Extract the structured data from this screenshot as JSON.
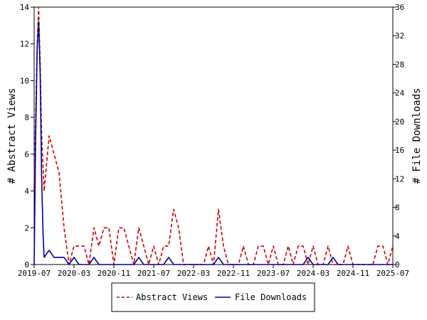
{
  "chart_data": {
    "type": "line",
    "title": "",
    "xlabel": "",
    "ylabel_left": "# Abstract Views",
    "ylabel_right": "# File Downloads",
    "ylim_left": [
      0,
      14
    ],
    "ylim_right": [
      0,
      36
    ],
    "yticks_left": [
      "0",
      "2",
      "4",
      "6",
      "8",
      "10",
      "12",
      "14"
    ],
    "yticks_right": [
      "0",
      "4",
      "8",
      "12",
      "16",
      "20",
      "24",
      "28",
      "32",
      "36"
    ],
    "x_labels": [
      "2019-07",
      "2020-03",
      "2020-11",
      "2021-07",
      "2022-03",
      "2022-11",
      "2023-07",
      "2024-03",
      "2024-11",
      "2025-07"
    ],
    "x_range": [
      0,
      72
    ],
    "legend_position": "bottom",
    "colors": {
      "abstract": "#cc0000",
      "downloads": "#000099"
    },
    "series": [
      {
        "name": "Abstract Views",
        "axis": "left",
        "style": "dashed",
        "points": [
          [
            0,
            4
          ],
          [
            0.3,
            8
          ],
          [
            0.6,
            12
          ],
          [
            0.9,
            14
          ],
          [
            1.2,
            11
          ],
          [
            1.5,
            7
          ],
          [
            2,
            4
          ],
          [
            3,
            7
          ],
          [
            4,
            6
          ],
          [
            5,
            5
          ],
          [
            6,
            2
          ],
          [
            7,
            0
          ],
          [
            8,
            1
          ],
          [
            9,
            1
          ],
          [
            10,
            1
          ],
          [
            11,
            0
          ],
          [
            12,
            2
          ],
          [
            13,
            1
          ],
          [
            14,
            2
          ],
          [
            15,
            2
          ],
          [
            16,
            0
          ],
          [
            17,
            2
          ],
          [
            18,
            2
          ],
          [
            19,
            1
          ],
          [
            20,
            0
          ],
          [
            21,
            2
          ],
          [
            22,
            1
          ],
          [
            23,
            0
          ],
          [
            24,
            1
          ],
          [
            25,
            0
          ],
          [
            26,
            1
          ],
          [
            27,
            1
          ],
          [
            28,
            3
          ],
          [
            29,
            2
          ],
          [
            30,
            0
          ],
          [
            31,
            0
          ],
          [
            32,
            0
          ],
          [
            33,
            0
          ],
          [
            34,
            0
          ],
          [
            35,
            1
          ],
          [
            36,
            0
          ],
          [
            37,
            3
          ],
          [
            38,
            1
          ],
          [
            39,
            0
          ],
          [
            40,
            0
          ],
          [
            41,
            0
          ],
          [
            42,
            1
          ],
          [
            43,
            0
          ],
          [
            44,
            0
          ],
          [
            45,
            1
          ],
          [
            46,
            1
          ],
          [
            47,
            0
          ],
          [
            48,
            1
          ],
          [
            49,
            0
          ],
          [
            50,
            0
          ],
          [
            51,
            1
          ],
          [
            52,
            0
          ],
          [
            53,
            1
          ],
          [
            54,
            1
          ],
          [
            55,
            0
          ],
          [
            56,
            1
          ],
          [
            57,
            0
          ],
          [
            58,
            0
          ],
          [
            59,
            1
          ],
          [
            60,
            0
          ],
          [
            61,
            0
          ],
          [
            62,
            0
          ],
          [
            63,
            1
          ],
          [
            64,
            0
          ],
          [
            65,
            0
          ],
          [
            66,
            0
          ],
          [
            67,
            0
          ],
          [
            68,
            0
          ],
          [
            69,
            1
          ],
          [
            70,
            1
          ],
          [
            71,
            0
          ],
          [
            72,
            1
          ]
        ]
      },
      {
        "name": "File Downloads",
        "axis": "right",
        "style": "solid",
        "points": [
          [
            0,
            0
          ],
          [
            0.3,
            18
          ],
          [
            0.6,
            30
          ],
          [
            0.9,
            34
          ],
          [
            1.2,
            27
          ],
          [
            1.5,
            12
          ],
          [
            1.8,
            4
          ],
          [
            2,
            1
          ],
          [
            3,
            2
          ],
          [
            4,
            1
          ],
          [
            5,
            1
          ],
          [
            6,
            1
          ],
          [
            7,
            0
          ],
          [
            8,
            1
          ],
          [
            9,
            0
          ],
          [
            10,
            0
          ],
          [
            11,
            0
          ],
          [
            12,
            1
          ],
          [
            13,
            0
          ],
          [
            14,
            0
          ],
          [
            15,
            0
          ],
          [
            16,
            0
          ],
          [
            17,
            0
          ],
          [
            18,
            0
          ],
          [
            19,
            0
          ],
          [
            20,
            0
          ],
          [
            21,
            1
          ],
          [
            22,
            0
          ],
          [
            23,
            0
          ],
          [
            24,
            0
          ],
          [
            25,
            0
          ],
          [
            26,
            0
          ],
          [
            27,
            1
          ],
          [
            28,
            0
          ],
          [
            29,
            0
          ],
          [
            30,
            0
          ],
          [
            31,
            0
          ],
          [
            32,
            0
          ],
          [
            33,
            0
          ],
          [
            34,
            0
          ],
          [
            35,
            0
          ],
          [
            36,
            0
          ],
          [
            37,
            1
          ],
          [
            38,
            0
          ],
          [
            39,
            0
          ],
          [
            40,
            0
          ],
          [
            41,
            0
          ],
          [
            42,
            0
          ],
          [
            43,
            0
          ],
          [
            44,
            0
          ],
          [
            45,
            0
          ],
          [
            46,
            0
          ],
          [
            47,
            0
          ],
          [
            48,
            0
          ],
          [
            49,
            0
          ],
          [
            50,
            0
          ],
          [
            51,
            0
          ],
          [
            52,
            0
          ],
          [
            53,
            0
          ],
          [
            54,
            0
          ],
          [
            55,
            1
          ],
          [
            56,
            0
          ],
          [
            57,
            0
          ],
          [
            58,
            0
          ],
          [
            59,
            0
          ],
          [
            60,
            1
          ],
          [
            61,
            0
          ],
          [
            62,
            0
          ],
          [
            63,
            0
          ],
          [
            64,
            0
          ],
          [
            65,
            0
          ],
          [
            66,
            0
          ],
          [
            67,
            0
          ],
          [
            68,
            0
          ],
          [
            69,
            0
          ],
          [
            70,
            0
          ],
          [
            71,
            0
          ],
          [
            72,
            0
          ]
        ]
      }
    ]
  }
}
